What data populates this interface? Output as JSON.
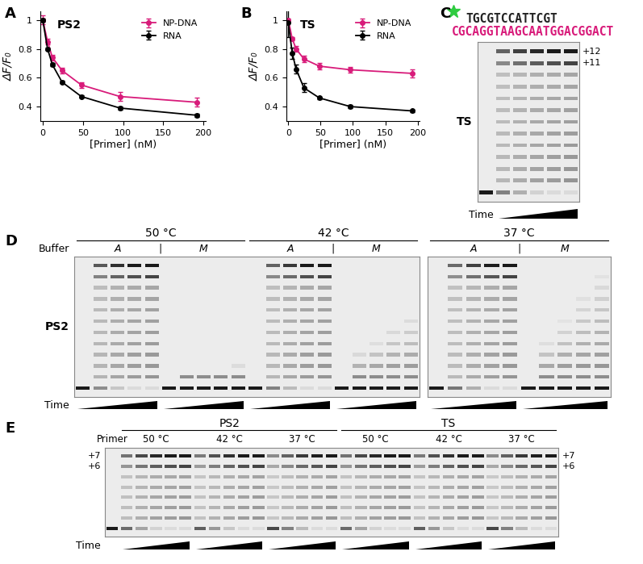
{
  "panel_labels": [
    "A",
    "B",
    "C",
    "D",
    "E"
  ],
  "chart_data": [
    {
      "type": "line",
      "title": "PS2",
      "xlabel": "[Primer] (nM)",
      "ylabel": "ΔF/F₀",
      "x": [
        0,
        6,
        12,
        24,
        48,
        96,
        192
      ],
      "series": [
        {
          "name": "NP-DNA",
          "color": "#d81b7a",
          "marker": "circle",
          "values": [
            1.0,
            0.85,
            0.74,
            0.65,
            0.55,
            0.47,
            0.43
          ],
          "errors": [
            0.03,
            0.02,
            0.02,
            0.02,
            0.02,
            0.03,
            0.03
          ]
        },
        {
          "name": "RNA",
          "color": "#000000",
          "marker": "circle",
          "values": [
            1.0,
            0.8,
            0.69,
            0.57,
            0.47,
            0.39,
            0.34
          ],
          "errors": [
            0.01,
            0.01,
            0.01,
            0.01,
            0.01,
            0.01,
            0.01
          ]
        }
      ],
      "xlim": [
        -3,
        203
      ],
      "ylim": [
        0.3,
        1.06
      ],
      "xticks": [
        0,
        50,
        100,
        150,
        200
      ],
      "yticks": [
        0.4,
        0.6,
        0.8,
        1
      ],
      "legend": "upper right"
    },
    {
      "type": "line",
      "title": "TS",
      "xlabel": "[Primer] (nM)",
      "ylabel": "ΔF/F₀",
      "x": [
        0,
        6,
        12,
        24,
        48,
        96,
        192
      ],
      "series": [
        {
          "name": "NP-DNA",
          "color": "#d81b7a",
          "marker": "circle",
          "values": [
            1.0,
            0.87,
            0.8,
            0.73,
            0.68,
            0.655,
            0.63
          ],
          "errors": [
            0.01,
            0.01,
            0.02,
            0.02,
            0.02,
            0.02,
            0.03
          ]
        },
        {
          "name": "RNA",
          "color": "#000000",
          "marker": "circle",
          "values": [
            0.98,
            0.77,
            0.66,
            0.53,
            0.46,
            0.4,
            0.37
          ],
          "errors": [
            0.1,
            0.04,
            0.03,
            0.03,
            0.01,
            0.01,
            0.01
          ]
        }
      ],
      "xlim": [
        -3,
        203
      ],
      "ylim": [
        0.3,
        1.06
      ],
      "xticks": [
        0,
        50,
        100,
        150,
        200
      ],
      "yticks": [
        0.4,
        0.6,
        0.8,
        1
      ],
      "legend": "upper right"
    }
  ],
  "gels": {
    "C": {
      "sequence_top": "TGCGTCCATTCGT",
      "sequence_bottom": "CGCAGGTAAGCAATGGACGGACT",
      "label": "TS",
      "band_labels": [
        "+12",
        "+11"
      ],
      "time_label": "Time"
    },
    "D": {
      "label": "PS2",
      "temperatures": [
        "50 °C",
        "42 °C",
        "37 °C"
      ],
      "buffer_label": "Buffer",
      "buffers": [
        "A",
        "M"
      ],
      "separator": "|",
      "time_label": "Time"
    },
    "E": {
      "primer_label": "Primer",
      "templates": [
        "PS2",
        "TS"
      ],
      "temperatures": [
        "50 °C",
        "42 °C",
        "37 °C"
      ],
      "band_labels": [
        "+7",
        "+6"
      ],
      "time_label": "Time"
    }
  }
}
